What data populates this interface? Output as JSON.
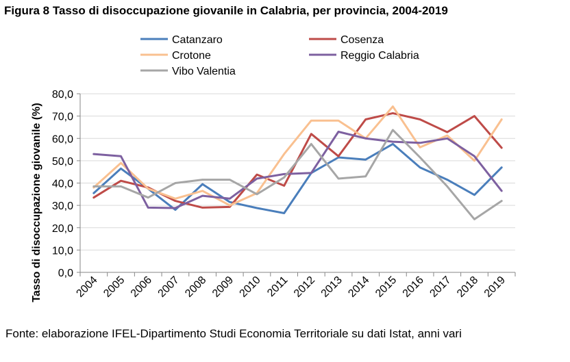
{
  "figure": {
    "title": "Figura 8 Tasso di disoccupazione giovanile in Calabria, per provincia, 2004-2019",
    "source": "Fonte: elaborazione IFEL-Dipartimento Studi Economia Territoriale su dati Istat, anni vari"
  },
  "chart_data": {
    "type": "line",
    "title": "Figura 8 Tasso di disoccupazione giovanile in Calabria, per provincia, 2004-2019",
    "xlabel": "",
    "ylabel": "Tasso di disoccupazione giovanile (%)",
    "ylim": [
      0,
      80
    ],
    "yticks": [
      "0,0",
      "10,0",
      "20,0",
      "30,0",
      "40,0",
      "50,0",
      "60,0",
      "70,0",
      "80,0"
    ],
    "ytick_values": [
      0,
      10,
      20,
      30,
      40,
      50,
      60,
      70,
      80
    ],
    "grid": true,
    "legend_position": "top",
    "categories": [
      "2004",
      "2005",
      "2006",
      "2007",
      "2008",
      "2009",
      "2010",
      "2011",
      "2012",
      "2013",
      "2014",
      "2015",
      "2016",
      "2017",
      "2018",
      "2019"
    ],
    "series": [
      {
        "name": "Catanzaro",
        "color": "#4a7ebb",
        "values": [
          35.5,
          46.5,
          37.5,
          28.0,
          39.5,
          31.5,
          28.8,
          26.5,
          44.5,
          51.5,
          50.5,
          57.5,
          47.0,
          41.5,
          34.7,
          47.0
        ]
      },
      {
        "name": "Cosenza",
        "color": "#be4b48",
        "values": [
          33.5,
          41.0,
          38.0,
          32.0,
          29.0,
          29.3,
          43.8,
          38.8,
          62.0,
          52.0,
          68.5,
          71.3,
          68.5,
          62.8,
          70.0,
          55.8
        ]
      },
      {
        "name": "Crotone",
        "color": "#f9c090",
        "values": [
          38.0,
          49.0,
          37.5,
          33.0,
          36.5,
          30.0,
          35.5,
          53.0,
          68.0,
          68.0,
          60.0,
          74.3,
          56.0,
          61.3,
          50.0,
          68.5
        ]
      },
      {
        "name": "Reggio Calabria",
        "color": "#7d60a0",
        "values": [
          53.0,
          52.0,
          29.0,
          28.8,
          34.3,
          33.0,
          42.0,
          44.0,
          44.5,
          63.0,
          60.0,
          58.5,
          58.0,
          60.0,
          52.0,
          36.5
        ]
      },
      {
        "name": "Vibo Valentia",
        "color": "#a6a6a6",
        "values": [
          38.5,
          38.5,
          33.5,
          40.0,
          41.5,
          41.5,
          35.0,
          42.5,
          57.5,
          42.0,
          43.0,
          63.8,
          51.5,
          38.5,
          23.8,
          32.0
        ]
      }
    ]
  }
}
